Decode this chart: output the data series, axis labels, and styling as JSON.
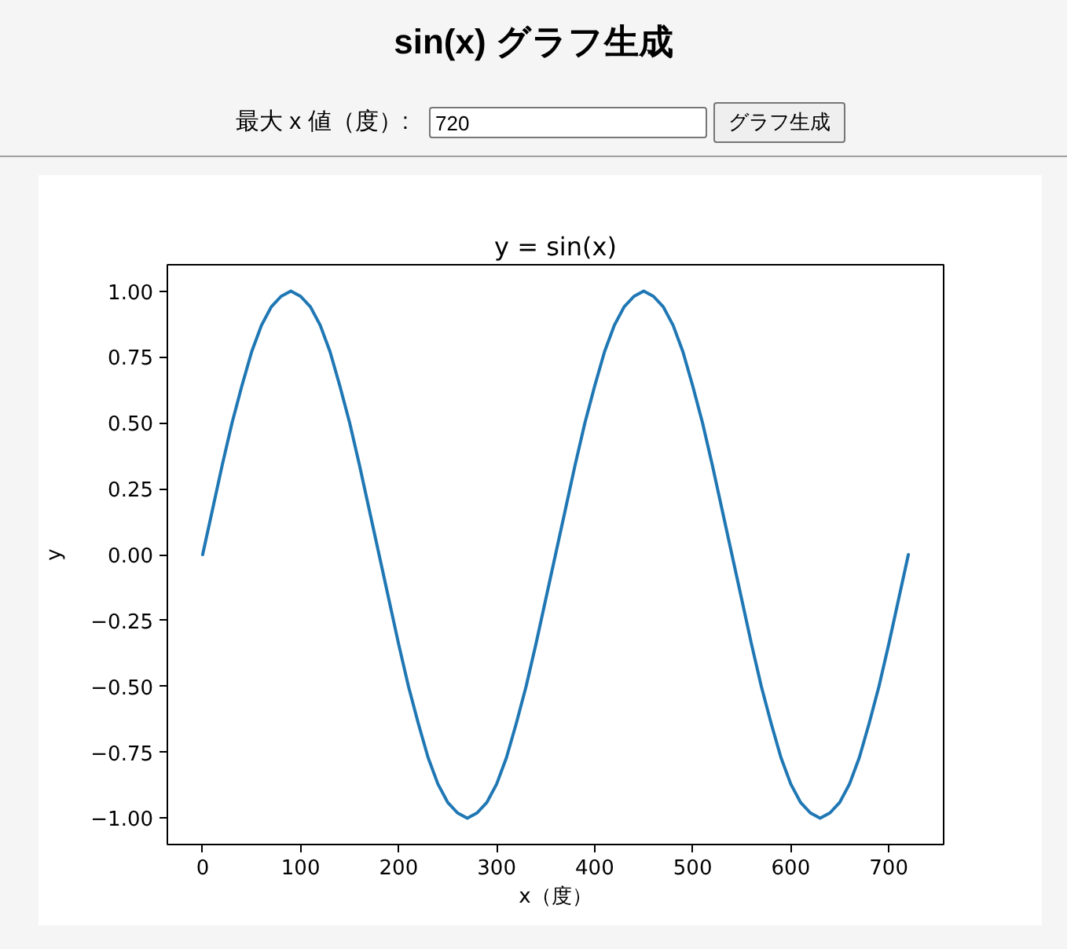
{
  "chart_data": {
    "type": "line",
    "title": "sin(x) グラフ生成",
    "subtitle": "y = sin(x)",
    "xlabel": "x（度）",
    "ylabel": "y",
    "annotations": [
      "最大 x 値（度）:",
      "720",
      "グラフ生成"
    ],
    "x": [
      0,
      10,
      20,
      30,
      40,
      50,
      60,
      70,
      80,
      90,
      100,
      110,
      120,
      130,
      140,
      150,
      160,
      170,
      180,
      190,
      200,
      210,
      220,
      230,
      240,
      250,
      260,
      270,
      280,
      290,
      300,
      310,
      320,
      330,
      340,
      350,
      360,
      370,
      380,
      390,
      400,
      410,
      420,
      430,
      440,
      450,
      460,
      470,
      480,
      490,
      500,
      510,
      520,
      530,
      540,
      550,
      560,
      570,
      580,
      590,
      600,
      610,
      620,
      630,
      640,
      650,
      660,
      670,
      680,
      690,
      700,
      710,
      720
    ],
    "series": [
      {
        "color": "#1f77b4",
        "values": [
          0,
          0.17,
          0.34,
          0.5,
          0.64,
          0.77,
          0.87,
          0.94,
          0.98,
          1,
          0.98,
          0.94,
          0.87,
          0.77,
          0.64,
          0.5,
          0.34,
          0.17,
          0,
          -0.17,
          -0.34,
          -0.5,
          -0.64,
          -0.77,
          -0.87,
          -0.94,
          -0.98,
          -1,
          -0.98,
          -0.94,
          -0.87,
          -0.77,
          -0.64,
          -0.5,
          -0.34,
          -0.17,
          0,
          0.17,
          0.34,
          0.5,
          0.64,
          0.77,
          0.87,
          0.94,
          0.98,
          1,
          0.98,
          0.94,
          0.87,
          0.77,
          0.64,
          0.5,
          0.34,
          0.17,
          0,
          -0.17,
          -0.34,
          -0.5,
          -0.64,
          -0.77,
          -0.87,
          -0.94,
          -0.98,
          -1,
          -0.98,
          -0.94,
          -0.87,
          -0.77,
          -0.64,
          -0.5,
          -0.34,
          -0.17,
          0
        ]
      }
    ],
    "xlim": [
      -36,
      756
    ],
    "ylim": [
      -1.1,
      1.1
    ],
    "xticks": [
      0,
      100,
      200,
      300,
      400,
      500,
      600,
      700
    ],
    "yticks": [
      {
        "value": -1,
        "label": "−1.00"
      },
      {
        "value": -0.75,
        "label": "−0.75"
      },
      {
        "value": -0.5,
        "label": "−0.50"
      },
      {
        "value": -0.25,
        "label": "−0.25"
      },
      {
        "value": 0,
        "label": "0.00"
      },
      {
        "value": 0.25,
        "label": "0.25"
      },
      {
        "value": 0.5,
        "label": "0.50"
      },
      {
        "value": 0.75,
        "label": "0.75"
      },
      {
        "value": 1,
        "label": "1.00"
      }
    ],
    "grid": false,
    "line_style": "solid"
  }
}
